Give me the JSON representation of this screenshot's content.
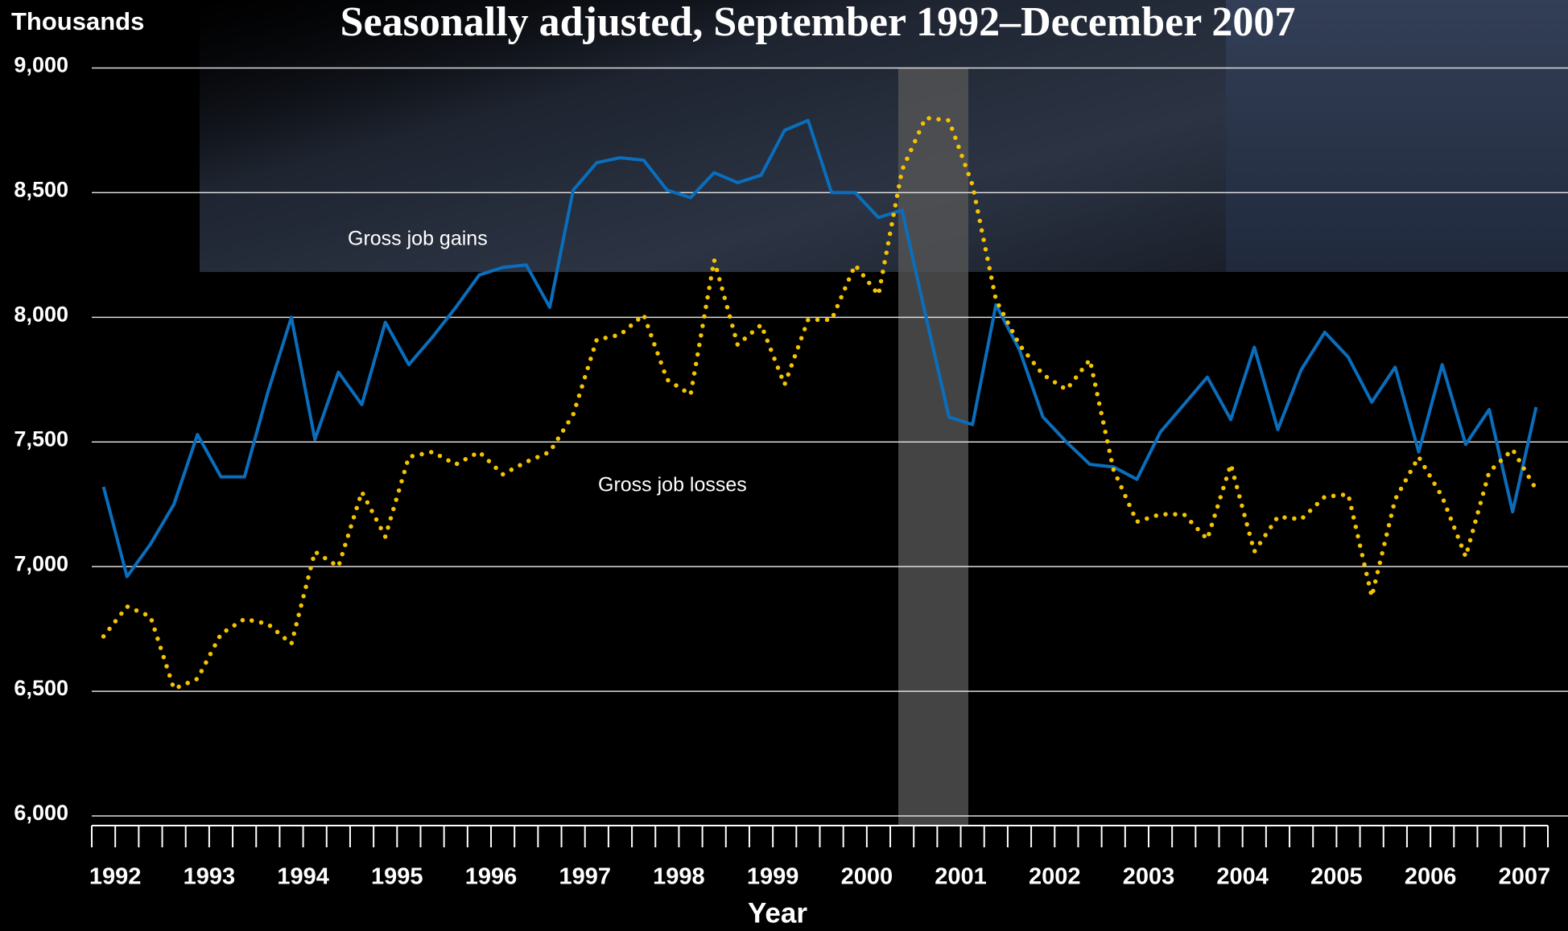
{
  "chart_data": {
    "type": "line",
    "title": "Seasonally adjusted, September 1992–December 2007",
    "y_label": "Thousands",
    "x_label": "Year",
    "categories": [
      "1992",
      null,
      null,
      null,
      "1993",
      null,
      null,
      null,
      "1994",
      null,
      null,
      null,
      "1995",
      null,
      null,
      null,
      "1996",
      null,
      null,
      null,
      "1997",
      null,
      null,
      null,
      "1998",
      null,
      null,
      null,
      "1999",
      null,
      null,
      null,
      "2000",
      null,
      null,
      null,
      "2001",
      null,
      null,
      null,
      "2002",
      null,
      null,
      null,
      "2003",
      null,
      null,
      null,
      "2004",
      null,
      null,
      null,
      "2005",
      null,
      null,
      null,
      "2006",
      null,
      null,
      null,
      "2007",
      null
    ],
    "series": [
      {
        "name": "Gross job gains",
        "color": "#0a6ebd",
        "style": "solid",
        "values": [
          7320,
          6960,
          7090,
          7250,
          7530,
          7360,
          7360,
          7700,
          8000,
          7510,
          7780,
          7650,
          7980,
          7810,
          7920,
          8040,
          8170,
          8200,
          8210,
          8040,
          8510,
          8620,
          8640,
          8630,
          8510,
          8480,
          8580,
          8540,
          8570,
          8750,
          8790,
          8500,
          8500,
          8400,
          8430,
          8010,
          7600,
          7570,
          8050,
          7870,
          7600,
          7500,
          7410,
          7400,
          7350,
          7540,
          7650,
          7760,
          7590,
          7880,
          7550,
          7790,
          7940,
          7840,
          7660,
          7800,
          7460,
          7810,
          7490,
          7630,
          7220,
          7640
        ]
      },
      {
        "name": "Gross job losses",
        "color": "#f5c400",
        "style": "dotted",
        "values": [
          6720,
          6840,
          6800,
          6510,
          6550,
          6730,
          6790,
          6770,
          6690,
          7060,
          7000,
          7300,
          7120,
          7440,
          7460,
          7410,
          7460,
          7370,
          7420,
          7460,
          7610,
          7910,
          7930,
          8010,
          7750,
          7690,
          8230,
          7890,
          7970,
          7730,
          7990,
          7990,
          8210,
          8090,
          8590,
          8800,
          8790,
          8530,
          8070,
          7890,
          7770,
          7710,
          7830,
          7390,
          7180,
          7210,
          7210,
          7110,
          7410,
          7060,
          7200,
          7190,
          7280,
          7290,
          6880,
          7270,
          7440,
          7280,
          7040,
          7380,
          7470,
          7310
        ]
      }
    ],
    "ylim": [
      6000,
      9000
    ],
    "yticks": [
      {
        "value": 6000,
        "label": "6,000"
      },
      {
        "value": 6500,
        "label": "6,500"
      },
      {
        "value": 7000,
        "label": "7,000"
      },
      {
        "value": 7500,
        "label": "7,500"
      },
      {
        "value": 8000,
        "label": "8,000"
      },
      {
        "value": 8500,
        "label": "8,500"
      },
      {
        "value": 9000,
        "label": "9,000"
      }
    ],
    "grid": true
  }
}
